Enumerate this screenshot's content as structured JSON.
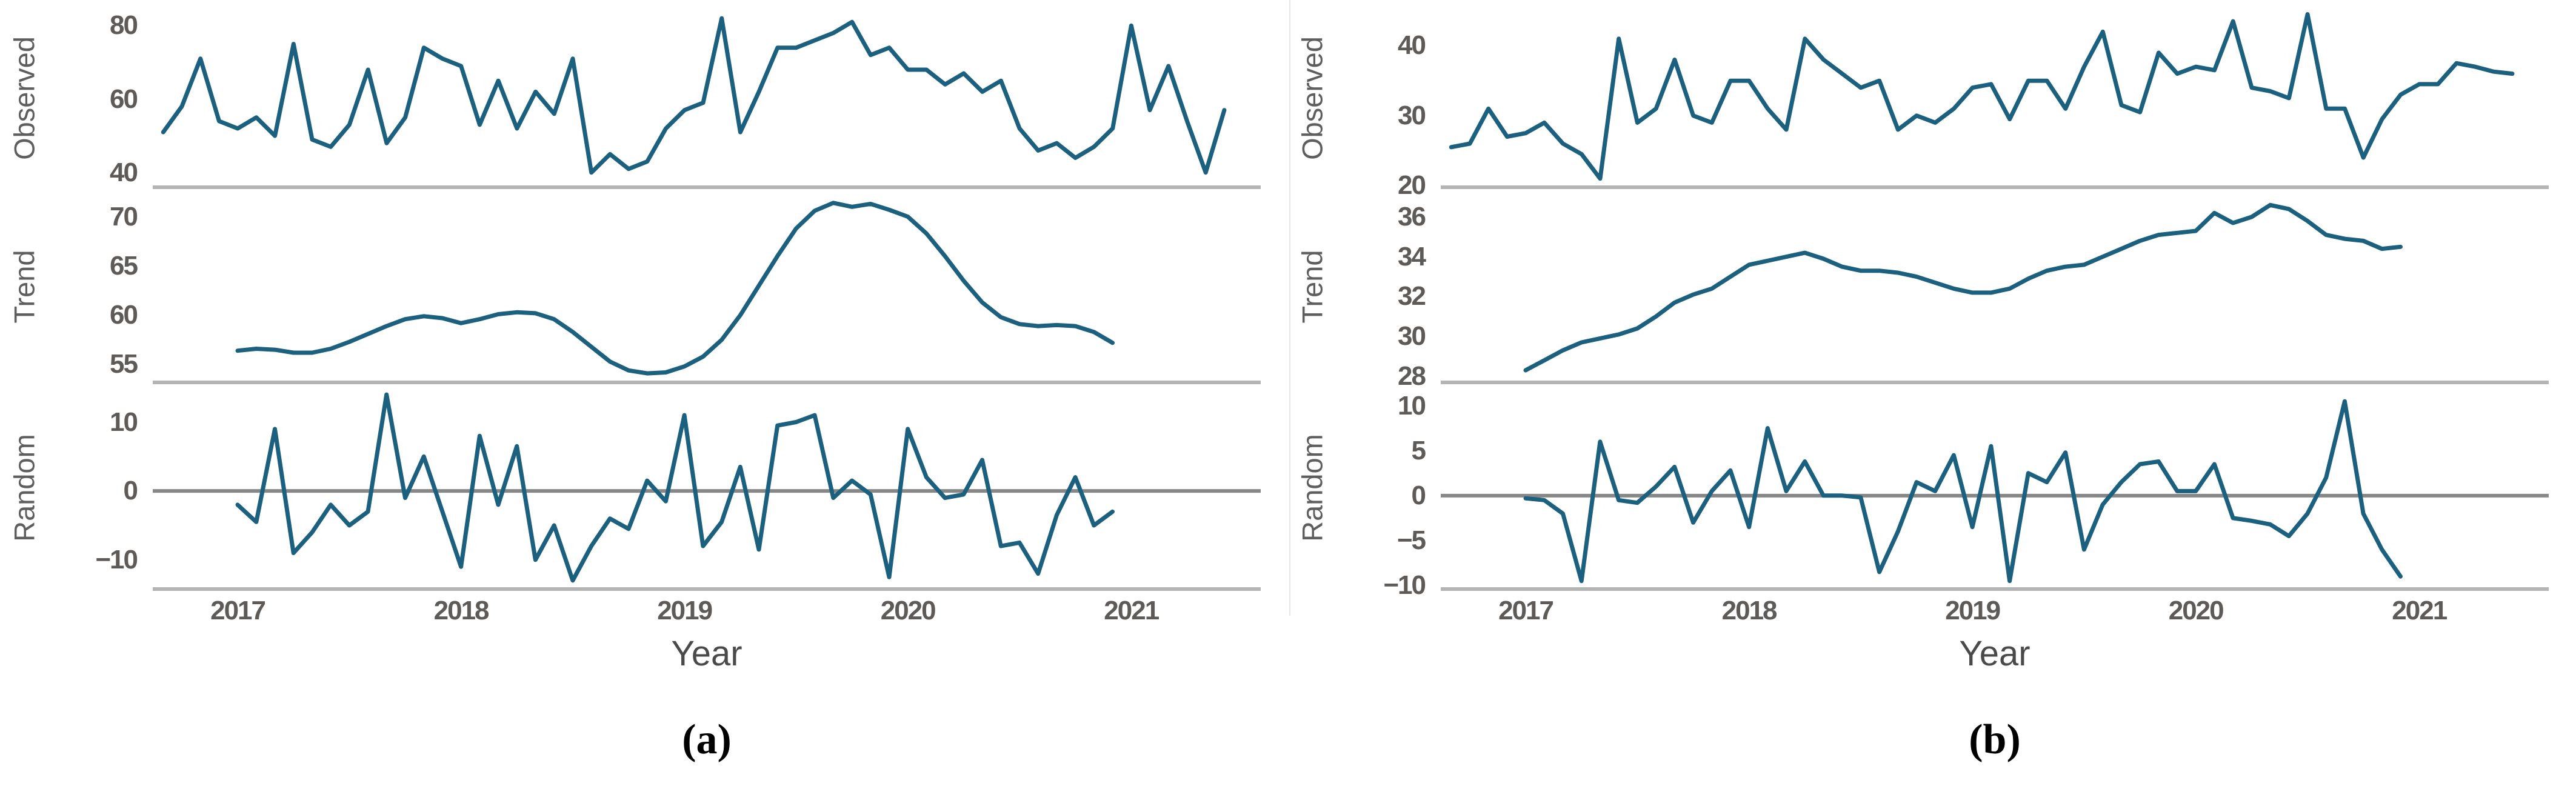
{
  "styles": {
    "line_color": "#1b607e",
    "baseline_color": "#b4b4b4",
    "zero_line_color": "#878787",
    "tick_text_color": "#5e5a57",
    "axis_title_color": "#5e5e5e",
    "xlabel_color": "#4a4a4a",
    "caption_color": "#000000",
    "divider_color": "#e4e4e4"
  },
  "chart_data": [
    {
      "id": "a",
      "caption": "(a)",
      "xlabel": "Year",
      "type": "line",
      "x_range": [
        2016.62,
        2021.58
      ],
      "x_ticks": [
        2017,
        2018,
        2019,
        2020,
        2021
      ],
      "grid": false,
      "panels": [
        {
          "name": "Observed",
          "type": "line",
          "y_range": [
            35.5,
            85
          ],
          "y_ticks": [
            40,
            60,
            80
          ],
          "zero_line": false,
          "x_start": 2016.667,
          "x_step": 0.0833333,
          "values": [
            51,
            58,
            71,
            54,
            52,
            55,
            50,
            75,
            49,
            47,
            53,
            68,
            48,
            55,
            74,
            71,
            69,
            53,
            65,
            52,
            62,
            56,
            71,
            40,
            45,
            41,
            43,
            52,
            57,
            59,
            82,
            51,
            62,
            74,
            74,
            76,
            78,
            81,
            72,
            74,
            68,
            68,
            64,
            67,
            62,
            65,
            52,
            46,
            48,
            44,
            47,
            52,
            80,
            57,
            69,
            54,
            40,
            57
          ]
        },
        {
          "name": "Trend",
          "type": "line",
          "y_range": [
            53.0,
            72.8
          ],
          "y_ticks": [
            55,
            60,
            65,
            70
          ],
          "zero_line": false,
          "x_start": 2017.0,
          "x_step": 0.0833333,
          "values": [
            56.4,
            56.6,
            56.5,
            56.2,
            56.2,
            56.6,
            57.3,
            58.1,
            58.9,
            59.6,
            59.9,
            59.7,
            59.2,
            59.6,
            60.1,
            60.3,
            60.2,
            59.6,
            58.3,
            56.8,
            55.3,
            54.4,
            54.1,
            54.2,
            54.8,
            55.8,
            57.5,
            60.0,
            63.0,
            66.0,
            68.8,
            70.6,
            71.4,
            71.0,
            71.3,
            70.7,
            70.0,
            68.3,
            66.0,
            63.5,
            61.3,
            59.8,
            59.1,
            58.9,
            59.0,
            58.9,
            58.3,
            57.2
          ]
        },
        {
          "name": "Random",
          "type": "line",
          "y_range": [
            -14.5,
            15.5
          ],
          "y_ticks": [
            -10,
            0,
            10
          ],
          "zero_line": true,
          "x_start": 2017.0,
          "x_step": 0.0833333,
          "values": [
            -2,
            -4.5,
            9,
            -9,
            -6,
            -2,
            -5,
            -3,
            14,
            -1,
            5,
            -3,
            -11,
            8,
            -2,
            6.5,
            -10,
            -5,
            -13,
            -8,
            -4,
            -5.5,
            1.5,
            -1.5,
            11,
            -8,
            -4.5,
            3.5,
            -8.5,
            9.5,
            10,
            11,
            -1,
            1.5,
            -0.5,
            -12.5,
            9,
            2,
            -1,
            -0.5,
            4.5,
            -8,
            -7.5,
            -12,
            -3.5,
            2,
            -5,
            -3
          ]
        }
      ]
    },
    {
      "id": "b",
      "caption": "(b)",
      "xlabel": "Year",
      "type": "line",
      "x_range": [
        2016.62,
        2021.58
      ],
      "x_ticks": [
        2017,
        2018,
        2019,
        2020,
        2021
      ],
      "grid": false,
      "panels": [
        {
          "name": "Observed",
          "type": "line",
          "y_range": [
            19.5,
            45.5
          ],
          "y_ticks": [
            20,
            30,
            40
          ],
          "zero_line": false,
          "x_start": 2016.667,
          "x_step": 0.0833333,
          "values": [
            25.5,
            26,
            31,
            27,
            27.5,
            29,
            26,
            24.5,
            21,
            41,
            29,
            31,
            38,
            30,
            29,
            35,
            35,
            31,
            28,
            41,
            38,
            36,
            34,
            35,
            28,
            30,
            29,
            31,
            34,
            34.5,
            29.5,
            35,
            35,
            31,
            37,
            42,
            31.5,
            30.5,
            39,
            36,
            37,
            36.5,
            43.5,
            34,
            33.5,
            32.5,
            44.5,
            31,
            31,
            24,
            29.5,
            33,
            34.5,
            34.5,
            37.5,
            37,
            36.3,
            36
          ]
        },
        {
          "name": "Trend",
          "type": "line",
          "y_range": [
            27.6,
            37.4
          ],
          "y_ticks": [
            28,
            30,
            32,
            34,
            36
          ],
          "zero_line": false,
          "x_start": 2017.0,
          "x_step": 0.0833333,
          "values": [
            28.3,
            28.8,
            29.3,
            29.7,
            29.9,
            30.1,
            30.4,
            31.0,
            31.7,
            32.1,
            32.4,
            33.0,
            33.6,
            33.8,
            34.0,
            34.2,
            33.9,
            33.5,
            33.3,
            33.3,
            33.2,
            33.0,
            32.7,
            32.4,
            32.2,
            32.2,
            32.4,
            32.9,
            33.3,
            33.5,
            33.6,
            34.0,
            34.4,
            34.8,
            35.1,
            35.2,
            35.3,
            36.2,
            35.7,
            36.0,
            36.6,
            36.4,
            35.8,
            35.1,
            34.9,
            34.8,
            34.4,
            34.5
          ]
        },
        {
          "name": "Random",
          "type": "line",
          "y_range": [
            -10.6,
            12.4
          ],
          "y_ticks": [
            -10,
            -5,
            0,
            5,
            10
          ],
          "zero_line": true,
          "x_start": 2017.0,
          "x_step": 0.0833333,
          "values": [
            -0.3,
            -0.5,
            -2,
            -9.5,
            6,
            -0.5,
            -0.8,
            1,
            3.2,
            -3,
            0.5,
            2.8,
            -3.5,
            7.5,
            0.5,
            3.8,
            0,
            0,
            -0.2,
            -8.5,
            -4,
            1.5,
            0.5,
            4.5,
            -3.5,
            5.5,
            -9.5,
            2.5,
            1.5,
            4.8,
            -6,
            -1,
            1.5,
            3.5,
            3.8,
            0.5,
            0.5,
            3.5,
            -2.5,
            -2.8,
            -3.2,
            -4.5,
            -2,
            2,
            10.5,
            -2,
            -6,
            -9
          ]
        }
      ]
    }
  ]
}
